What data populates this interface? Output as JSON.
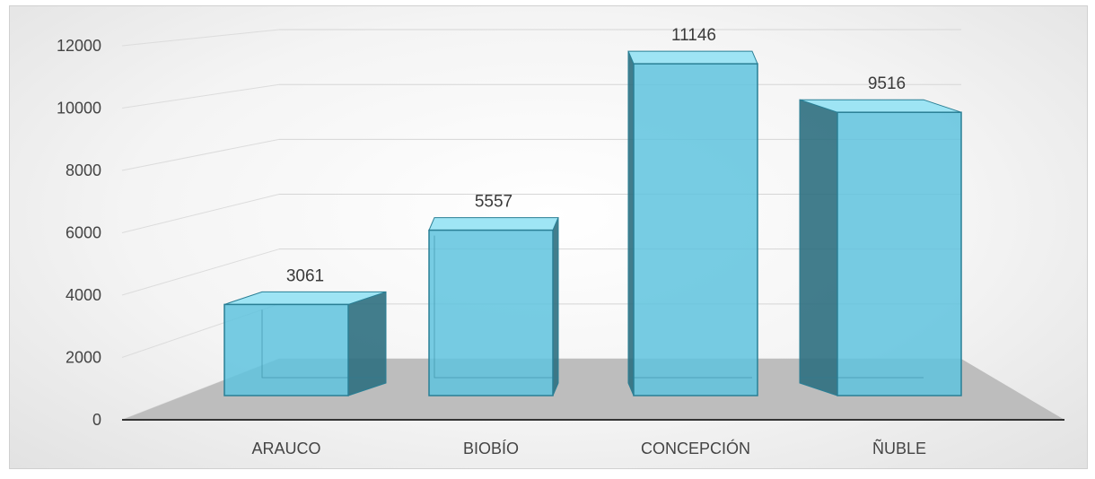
{
  "chart_data": {
    "type": "bar",
    "categories": [
      "ARAUCO",
      "BIOBÍO",
      "CONCEPCIÓN",
      "ÑUBLE"
    ],
    "values": [
      3061,
      5557,
      11146,
      9516
    ],
    "ylim": [
      0,
      12000
    ],
    "yticks": [
      0,
      2000,
      4000,
      6000,
      8000,
      10000,
      12000
    ],
    "data_labels": [
      "3061",
      "5557",
      "11146",
      "9516"
    ],
    "grid": true,
    "legend": "none",
    "style": "3d-column",
    "colors": {
      "bar_front": "#5fc3de",
      "bar_top": "#8ee0f3",
      "bar_side": "#2e6f80",
      "edge": "#2a7f95",
      "floor": "#bdbdbd"
    }
  }
}
